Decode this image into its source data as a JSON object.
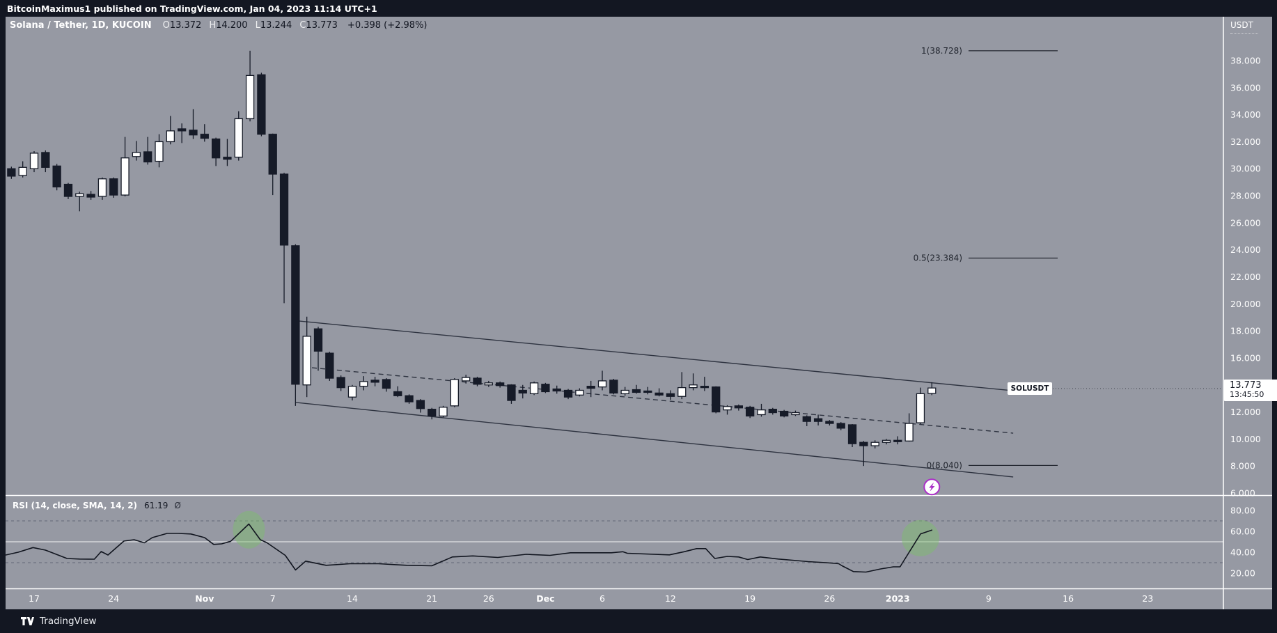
{
  "top_bar": {
    "text": "BitcoinMaximus1 published on TradingView.com, Jan 04, 2023 11:14 UTC+1"
  },
  "header": {
    "symbol": "Solana / Tether, 1D, KUCOIN",
    "ohlc": [
      {
        "label": "O",
        "value": "13.372"
      },
      {
        "label": "H",
        "value": "14.200"
      },
      {
        "label": "L",
        "value": "13.244"
      },
      {
        "label": "C",
        "value": "13.773"
      }
    ],
    "change": "+0.398 (+2.98%)",
    "currency_label": "USDT"
  },
  "price_label": {
    "symbol_tag": "SOLUSDT",
    "price": "13.773",
    "time": "13:45:50"
  },
  "rsi_header": {
    "title": "RSI (14, close, SMA, 14, 2)",
    "value": "61.19",
    "suffix": "Ø"
  },
  "footer": {
    "brand": "TradingView"
  },
  "colors": {
    "background_dark": "#131722",
    "pane_gray": "#9699a3",
    "candle_dark": "#161b28",
    "candle_white": "#ffffff",
    "line_dark": "#2e3340",
    "highlight_green": "rgba(124,191,107,0.45)",
    "marker_purple": "#ab2ec7",
    "axis_text": "#ffffff"
  },
  "chart_data": {
    "type": "candlestick+rsi",
    "symbol": "SOLUSDT",
    "interval": "1D",
    "exchange": "KUCOIN",
    "price_axis": {
      "ticks": [
        {
          "v": 38,
          "t": "38.000"
        },
        {
          "v": 36,
          "t": "36.000"
        },
        {
          "v": 34,
          "t": "34.000"
        },
        {
          "v": 32,
          "t": "32.000"
        },
        {
          "v": 30,
          "t": "30.000"
        },
        {
          "v": 28,
          "t": "28.000"
        },
        {
          "v": 26,
          "t": "26.000"
        },
        {
          "v": 24,
          "t": "24.000"
        },
        {
          "v": 22,
          "t": "22.000"
        },
        {
          "v": 20,
          "t": "20.000"
        },
        {
          "v": 18,
          "t": "18.000"
        },
        {
          "v": 16,
          "t": "16.000"
        },
        {
          "v": 14,
          "t": "14.000"
        },
        {
          "v": 12,
          "t": "12.000"
        },
        {
          "v": 10,
          "t": "10.000"
        },
        {
          "v": 8,
          "t": "8.000"
        },
        {
          "v": 6,
          "t": "6.000"
        }
      ],
      "min": 6,
      "max": 38
    },
    "time_axis": {
      "labels": [
        {
          "day": 3,
          "text": "17"
        },
        {
          "day": 10,
          "text": "24"
        },
        {
          "day": 18,
          "text": "Nov",
          "strong": true
        },
        {
          "day": 24,
          "text": "7"
        },
        {
          "day": 31,
          "text": "14"
        },
        {
          "day": 38,
          "text": "21"
        },
        {
          "day": 43,
          "text": "26"
        },
        {
          "day": 48,
          "text": "Dec",
          "strong": true
        },
        {
          "day": 53,
          "text": "6"
        },
        {
          "day": 59,
          "text": "12"
        },
        {
          "day": 66,
          "text": "19"
        },
        {
          "day": 73,
          "text": "26"
        },
        {
          "day": 79,
          "text": "2023",
          "strong": true
        },
        {
          "day": 87,
          "text": "9"
        },
        {
          "day": 94,
          "text": "16"
        },
        {
          "day": 101,
          "text": "23"
        }
      ]
    },
    "fib_levels": [
      {
        "label": "1(38.728)",
        "price": 38.728
      },
      {
        "label": "0.5(23.384)",
        "price": 23.384
      },
      {
        "label": "0(8.040)",
        "price": 8.04
      }
    ],
    "channel": {
      "upper": {
        "d1": 26.28,
        "p1": 18.73,
        "d2": 89.16,
        "p2": 13.57
      },
      "lower": {
        "d1": 26.04,
        "p1": 12.7,
        "d2": 89.16,
        "p2": 7.19
      },
      "mid_dashed": {
        "d1": 27.45,
        "p1": 15.27,
        "d2": 89.16,
        "p2": 10.43
      }
    },
    "marker": {
      "day": 82.0,
      "price": 6.45,
      "type": "lightning"
    },
    "candles": [
      {
        "t": "Oct 14",
        "o": 29.8,
        "h": 30.05,
        "l": 29.3,
        "c": 29.55
      },
      {
        "t": "Oct 15",
        "o": 30.0,
        "h": 30.15,
        "l": 29.25,
        "c": 29.45
      },
      {
        "t": "Oct 16",
        "o": 29.5,
        "h": 30.55,
        "l": 29.35,
        "c": 30.1
      },
      {
        "t": "Oct 17",
        "o": 30.0,
        "h": 31.3,
        "l": 29.75,
        "c": 31.15
      },
      {
        "t": "Oct 18",
        "o": 31.2,
        "h": 31.35,
        "l": 29.75,
        "c": 30.1
      },
      {
        "t": "Oct 19",
        "o": 30.2,
        "h": 30.35,
        "l": 28.4,
        "c": 28.65
      },
      {
        "t": "Oct 20",
        "o": 28.85,
        "h": 28.95,
        "l": 27.75,
        "c": 27.95
      },
      {
        "t": "Oct 21",
        "o": 27.95,
        "h": 28.3,
        "l": 26.85,
        "c": 28.15
      },
      {
        "t": "Oct 22",
        "o": 28.1,
        "h": 28.35,
        "l": 27.7,
        "c": 27.9
      },
      {
        "t": "Oct 23",
        "o": 27.95,
        "h": 29.35,
        "l": 27.7,
        "c": 29.25
      },
      {
        "t": "Oct 24",
        "o": 29.25,
        "h": 29.35,
        "l": 27.85,
        "c": 28.05
      },
      {
        "t": "Oct 25",
        "o": 28.05,
        "h": 32.35,
        "l": 27.95,
        "c": 30.8
      },
      {
        "t": "Oct 26",
        "o": 30.9,
        "h": 32.05,
        "l": 30.6,
        "c": 31.2
      },
      {
        "t": "Oct 27",
        "o": 31.25,
        "h": 32.35,
        "l": 30.3,
        "c": 30.5
      },
      {
        "t": "Oct 28",
        "o": 30.55,
        "h": 32.55,
        "l": 30.1,
        "c": 32.0
      },
      {
        "t": "Oct 29",
        "o": 32.0,
        "h": 33.9,
        "l": 31.8,
        "c": 32.8
      },
      {
        "t": "Oct 30",
        "o": 32.95,
        "h": 33.35,
        "l": 31.9,
        "c": 32.8
      },
      {
        "t": "Oct 31",
        "o": 32.85,
        "h": 34.4,
        "l": 32.2,
        "c": 32.5
      },
      {
        "t": "Nov 1",
        "o": 32.55,
        "h": 33.3,
        "l": 32.0,
        "c": 32.25
      },
      {
        "t": "Nov 2",
        "o": 32.2,
        "h": 32.3,
        "l": 30.2,
        "c": 30.8
      },
      {
        "t": "Nov 3",
        "o": 30.85,
        "h": 32.2,
        "l": 30.2,
        "c": 30.7
      },
      {
        "t": "Nov 4",
        "o": 30.85,
        "h": 34.25,
        "l": 30.6,
        "c": 33.7
      },
      {
        "t": "Nov 5",
        "o": 33.7,
        "h": 38.73,
        "l": 33.5,
        "c": 36.9
      },
      {
        "t": "Nov 6",
        "o": 36.95,
        "h": 37.1,
        "l": 32.4,
        "c": 32.55
      },
      {
        "t": "Nov 7",
        "o": 32.55,
        "h": 32.6,
        "l": 28.05,
        "c": 29.6
      },
      {
        "t": "Nov 8",
        "o": 29.6,
        "h": 29.7,
        "l": 20.05,
        "c": 24.35
      },
      {
        "t": "Nov 9",
        "o": 24.3,
        "h": 24.4,
        "l": 12.45,
        "c": 14.05
      },
      {
        "t": "Nov 10",
        "o": 14.0,
        "h": 19.05,
        "l": 13.1,
        "c": 17.6
      },
      {
        "t": "Nov 11",
        "o": 18.15,
        "h": 18.3,
        "l": 15.05,
        "c": 16.5
      },
      {
        "t": "Nov 12",
        "o": 16.35,
        "h": 16.45,
        "l": 14.3,
        "c": 14.5
      },
      {
        "t": "Nov 13",
        "o": 14.55,
        "h": 14.7,
        "l": 13.55,
        "c": 13.8
      },
      {
        "t": "Nov 14",
        "o": 13.1,
        "h": 14.0,
        "l": 12.85,
        "c": 13.9
      },
      {
        "t": "Nov 15",
        "o": 13.9,
        "h": 14.65,
        "l": 13.6,
        "c": 14.25
      },
      {
        "t": "Nov 16",
        "o": 14.35,
        "h": 14.6,
        "l": 13.9,
        "c": 14.2
      },
      {
        "t": "Nov 17",
        "o": 14.4,
        "h": 14.5,
        "l": 13.5,
        "c": 13.75
      },
      {
        "t": "Nov 18",
        "o": 13.5,
        "h": 13.9,
        "l": 13.1,
        "c": 13.2
      },
      {
        "t": "Nov 19",
        "o": 13.2,
        "h": 13.3,
        "l": 12.6,
        "c": 12.75
      },
      {
        "t": "Nov 20",
        "o": 12.85,
        "h": 12.95,
        "l": 11.95,
        "c": 12.25
      },
      {
        "t": "Nov 21",
        "o": 12.2,
        "h": 12.3,
        "l": 11.45,
        "c": 11.7
      },
      {
        "t": "Nov 22",
        "o": 11.7,
        "h": 12.45,
        "l": 11.6,
        "c": 12.35
      },
      {
        "t": "Nov 23",
        "o": 12.45,
        "h": 14.5,
        "l": 12.35,
        "c": 14.4
      },
      {
        "t": "Nov 24",
        "o": 14.3,
        "h": 14.75,
        "l": 14.1,
        "c": 14.55
      },
      {
        "t": "Nov 25",
        "o": 14.5,
        "h": 14.6,
        "l": 13.9,
        "c": 14.05
      },
      {
        "t": "Nov 26",
        "o": 14.0,
        "h": 14.3,
        "l": 13.85,
        "c": 14.15
      },
      {
        "t": "Nov 27",
        "o": 14.15,
        "h": 14.25,
        "l": 13.8,
        "c": 13.95
      },
      {
        "t": "Nov 28",
        "o": 14.0,
        "h": 14.05,
        "l": 12.6,
        "c": 12.85
      },
      {
        "t": "Nov 29",
        "o": 13.6,
        "h": 14.0,
        "l": 13.0,
        "c": 13.4
      },
      {
        "t": "Nov 30",
        "o": 13.35,
        "h": 14.25,
        "l": 13.25,
        "c": 14.15
      },
      {
        "t": "Dec 1",
        "o": 14.05,
        "h": 14.15,
        "l": 13.4,
        "c": 13.5
      },
      {
        "t": "Dec 2",
        "o": 13.7,
        "h": 13.95,
        "l": 13.35,
        "c": 13.55
      },
      {
        "t": "Dec 3",
        "o": 13.6,
        "h": 13.7,
        "l": 12.95,
        "c": 13.1
      },
      {
        "t": "Dec 4",
        "o": 13.25,
        "h": 13.75,
        "l": 13.15,
        "c": 13.6
      },
      {
        "t": "Dec 5",
        "o": 13.9,
        "h": 14.3,
        "l": 13.1,
        "c": 13.75
      },
      {
        "t": "Dec 6",
        "o": 13.85,
        "h": 15.05,
        "l": 13.6,
        "c": 14.3
      },
      {
        "t": "Dec 7",
        "o": 14.35,
        "h": 14.45,
        "l": 13.3,
        "c": 13.4
      },
      {
        "t": "Dec 8",
        "o": 13.35,
        "h": 13.85,
        "l": 13.2,
        "c": 13.6
      },
      {
        "t": "Dec 9",
        "o": 13.65,
        "h": 14.0,
        "l": 13.35,
        "c": 13.45
      },
      {
        "t": "Dec 10",
        "o": 13.55,
        "h": 13.85,
        "l": 13.3,
        "c": 13.45
      },
      {
        "t": "Dec 11",
        "o": 13.4,
        "h": 13.75,
        "l": 13.15,
        "c": 13.25
      },
      {
        "t": "Dec 12",
        "o": 13.35,
        "h": 13.6,
        "l": 12.9,
        "c": 13.15
      },
      {
        "t": "Dec 13",
        "o": 13.15,
        "h": 14.95,
        "l": 12.95,
        "c": 13.8
      },
      {
        "t": "Dec 14",
        "o": 13.8,
        "h": 14.85,
        "l": 13.6,
        "c": 14.0
      },
      {
        "t": "Dec 15",
        "o": 13.9,
        "h": 14.6,
        "l": 13.55,
        "c": 13.8
      },
      {
        "t": "Dec 16",
        "o": 13.85,
        "h": 13.9,
        "l": 11.9,
        "c": 12.0
      },
      {
        "t": "Dec 17",
        "o": 12.15,
        "h": 12.5,
        "l": 11.8,
        "c": 12.4
      },
      {
        "t": "Dec 18",
        "o": 12.45,
        "h": 12.55,
        "l": 12.1,
        "c": 12.3
      },
      {
        "t": "Dec 19",
        "o": 12.35,
        "h": 12.45,
        "l": 11.55,
        "c": 11.7
      },
      {
        "t": "Dec 20",
        "o": 11.8,
        "h": 12.6,
        "l": 11.65,
        "c": 12.15
      },
      {
        "t": "Dec 21",
        "o": 12.2,
        "h": 12.3,
        "l": 11.8,
        "c": 11.95
      },
      {
        "t": "Dec 22",
        "o": 12.05,
        "h": 12.15,
        "l": 11.6,
        "c": 11.7
      },
      {
        "t": "Dec 23",
        "o": 11.8,
        "h": 12.1,
        "l": 11.7,
        "c": 11.95
      },
      {
        "t": "Dec 24",
        "o": 11.65,
        "h": 11.75,
        "l": 10.95,
        "c": 11.3
      },
      {
        "t": "Dec 25",
        "o": 11.5,
        "h": 11.8,
        "l": 11.0,
        "c": 11.3
      },
      {
        "t": "Dec 26",
        "o": 11.3,
        "h": 11.4,
        "l": 11.0,
        "c": 11.15
      },
      {
        "t": "Dec 27",
        "o": 11.15,
        "h": 11.25,
        "l": 10.65,
        "c": 10.8
      },
      {
        "t": "Dec 28",
        "o": 11.05,
        "h": 11.1,
        "l": 9.4,
        "c": 9.65
      },
      {
        "t": "Dec 29",
        "o": 9.75,
        "h": 9.85,
        "l": 8.0,
        "c": 9.5
      },
      {
        "t": "Dec 30",
        "o": 9.5,
        "h": 9.9,
        "l": 9.3,
        "c": 9.75
      },
      {
        "t": "Dec 31",
        "o": 9.75,
        "h": 10.0,
        "l": 9.6,
        "c": 9.9
      },
      {
        "t": "Jan 1",
        "o": 9.9,
        "h": 10.2,
        "l": 9.6,
        "c": 9.8
      },
      {
        "t": "Jan 2",
        "o": 9.85,
        "h": 11.9,
        "l": 9.8,
        "c": 11.15
      },
      {
        "t": "Jan 3",
        "o": 11.2,
        "h": 13.8,
        "l": 11.1,
        "c": 13.35
      },
      {
        "t": "Jan 4",
        "o": 13.372,
        "h": 14.2,
        "l": 13.244,
        "c": 13.773
      }
    ],
    "rsi": {
      "value": 61.19,
      "axis_ticks": [
        {
          "v": 80,
          "t": "80.00"
        },
        {
          "v": 60,
          "t": "60.00"
        },
        {
          "v": 40,
          "t": "40.00"
        },
        {
          "v": 20,
          "t": "20.00"
        }
      ],
      "bands": [
        70,
        30
      ],
      "mid": 50,
      "points": [
        [
          0.5,
          37.3
        ],
        [
          1.6,
          40
        ],
        [
          2.9,
          44.5
        ],
        [
          4,
          42
        ],
        [
          5.9,
          34
        ],
        [
          7,
          33.5
        ],
        [
          8.3,
          33.3
        ],
        [
          8.9,
          40.7
        ],
        [
          9.5,
          37.3
        ],
        [
          10.9,
          50.7
        ],
        [
          11.8,
          52
        ],
        [
          12.7,
          49
        ],
        [
          13.4,
          54
        ],
        [
          14.7,
          58
        ],
        [
          15.7,
          58
        ],
        [
          16.8,
          57.5
        ],
        [
          18,
          54
        ],
        [
          18.8,
          47.5
        ],
        [
          19.5,
          48
        ],
        [
          20.3,
          50.5
        ],
        [
          21.9,
          67
        ],
        [
          22.9,
          52
        ],
        [
          23.5,
          49
        ],
        [
          25.1,
          37
        ],
        [
          26,
          23
        ],
        [
          26.9,
          31.5
        ],
        [
          28.7,
          27.5
        ],
        [
          30.8,
          29
        ],
        [
          33.3,
          29
        ],
        [
          35.8,
          27.5
        ],
        [
          38,
          27
        ],
        [
          39.8,
          35.5
        ],
        [
          41.6,
          36.5
        ],
        [
          43.8,
          35
        ],
        [
          46.3,
          38
        ],
        [
          48.4,
          37
        ],
        [
          50.2,
          39.5
        ],
        [
          52,
          39.5
        ],
        [
          53.8,
          39.5
        ],
        [
          54.8,
          40.5
        ],
        [
          55.2,
          39
        ],
        [
          58.9,
          37.5
        ],
        [
          60.2,
          40.5
        ],
        [
          61.3,
          43.5
        ],
        [
          62.1,
          43.5
        ],
        [
          62.9,
          34
        ],
        [
          64,
          36
        ],
        [
          65,
          35.5
        ],
        [
          65.8,
          33
        ],
        [
          66.9,
          35.5
        ],
        [
          68.5,
          33.5
        ],
        [
          70.1,
          32
        ],
        [
          71.1,
          31
        ],
        [
          72.7,
          30
        ],
        [
          73.8,
          29
        ],
        [
          74.1,
          27
        ],
        [
          75.1,
          21.5
        ],
        [
          76.2,
          21
        ],
        [
          77.5,
          24
        ],
        [
          78.6,
          26
        ],
        [
          79.2,
          26
        ],
        [
          81,
          57.5
        ],
        [
          82,
          61.19
        ]
      ],
      "highlights": [
        {
          "day": 21.9,
          "value": 61.5
        },
        {
          "day": 81.0,
          "value": 53.5
        }
      ]
    }
  }
}
